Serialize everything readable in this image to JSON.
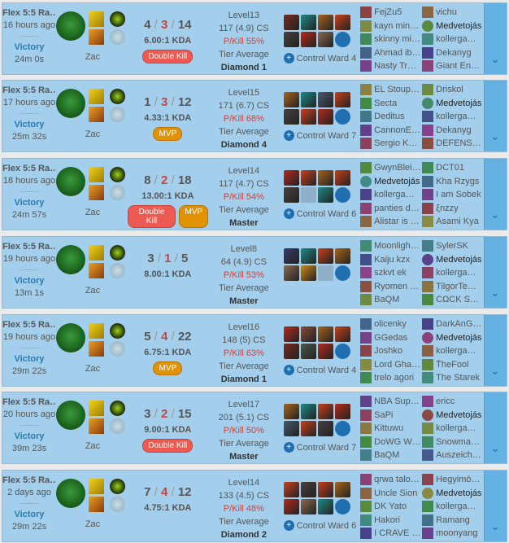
{
  "colors": {
    "row_bg": "#a3cfec",
    "victory": "#2a7ab0",
    "deaths": "#c6443e",
    "double_kill": "#ee5a52",
    "mvp": "#e19205",
    "expand": "#64b1e4"
  },
  "games": [
    {
      "type": "Flex 5:5 Ra…",
      "ago": "16 hours ago",
      "result": "Victory",
      "length": "24m 0s",
      "champion": "Zac",
      "k": "4",
      "d": "3",
      "a": "14",
      "kda": "6.00:1 KDA",
      "badges": [
        "Double Kill"
      ],
      "level": "Level13",
      "cs": "117 (4.9) CS",
      "pkill": "P/Kill 55%",
      "tier_label": "Tier Average",
      "tier": "Diamond 1",
      "ward": "Control Ward 4",
      "items": [
        "#7a2a20",
        "#1e8a86",
        "#a8641a",
        "#c8401a",
        "#4a4040",
        "#b52a1a",
        "#8a6a50",
        "ward"
      ],
      "team1": [
        "FejZu5",
        "kayn min…",
        "skinny mi…",
        "Ahmad ib…",
        "Nasty Tra…"
      ],
      "team2": [
        "vichu",
        "Medvetojás",
        "kollergam…",
        "Dekanyg",
        "Giant Ene…"
      ]
    },
    {
      "type": "Flex 5:5 Ra…",
      "ago": "17 hours ago",
      "result": "Victory",
      "length": "25m 32s",
      "champion": "Zac",
      "k": "1",
      "d": "3",
      "a": "12",
      "kda": "4.33:1 KDA",
      "badges": [
        "MVP"
      ],
      "level": "Level15",
      "cs": "171 (6.7) CS",
      "pkill": "P/Kill 68%",
      "tier_label": "Tier Average",
      "tier": "Diamond 4",
      "ward": "Control Ward 7",
      "items": [
        "#a8641a",
        "#1e8a86",
        "#4a5a6a",
        "#c8401a",
        "#4a4040",
        "#c84020",
        "#b52a1a",
        "ward"
      ],
      "team1": [
        "EL Stoupi…",
        "Secta",
        "Deditus",
        "CannonE…",
        "Sergio Ko…"
      ],
      "team2": [
        "Driskol",
        "Medvetojás",
        "kollergam…",
        "Dekanyg",
        "DEFENSI…"
      ]
    },
    {
      "type": "Flex 5:5 Ra…",
      "ago": "18 hours ago",
      "result": "Victory",
      "length": "24m 57s",
      "champion": "Zac",
      "k": "8",
      "d": "2",
      "a": "18",
      "kda": "13.00:1 KDA",
      "badges": [
        "Double Kill",
        "MVP"
      ],
      "level": "Level14",
      "cs": "117 (4.7) CS",
      "pkill": "P/Kill 54%",
      "tier_label": "Tier Average",
      "tier": "Master",
      "ward": "Control Ward 6",
      "items": [
        "#b52a1a",
        "#c84020",
        "#a8641a",
        "#c8401a",
        "#4a4040",
        "empty",
        "#1e8a86",
        "ward"
      ],
      "team1": [
        "GwynBleii…",
        "Medvetojás",
        "kollergam…",
        "panties dr…",
        "Alistar is …"
      ],
      "team2": [
        "DCT01",
        "Kha Rzygs",
        "I am Sobek",
        "ξnzzy",
        "Asami Kya"
      ]
    },
    {
      "type": "Flex 5:5 Ra…",
      "ago": "19 hours ago",
      "result": "Victory",
      "length": "13m 1s",
      "champion": "Zac",
      "k": "3",
      "d": "1",
      "a": "5",
      "kda": "8.00:1 KDA",
      "badges": [],
      "level": "Level8",
      "cs": "64 (4.9) CS",
      "pkill": "P/Kill 53%",
      "tier_label": "Tier Average",
      "tier": "Master",
      "ward": "",
      "items": [
        "#3a3a6a",
        "#1e8a86",
        "#c8401a",
        "#a8641a",
        "#8a6a50",
        "#c88a1a",
        "empty",
        "ward"
      ],
      "team1": [
        "Moonlight…",
        "Kaiju kzx",
        "szkvt ek",
        "Ryomen …",
        "BaQM"
      ],
      "team2": [
        "SylerSK",
        "Medvetojás",
        "kollergam…",
        "TilgorTem…",
        "CΩCK S8…"
      ]
    },
    {
      "type": "Flex 5:5 Ra…",
      "ago": "19 hours ago",
      "result": "Victory",
      "length": "29m 22s",
      "champion": "Zac",
      "k": "5",
      "d": "4",
      "a": "22",
      "kda": "6.75:1 KDA",
      "badges": [
        "MVP"
      ],
      "level": "Level16",
      "cs": "148 (5) CS",
      "pkill": "P/Kill 63%",
      "tier_label": "Tier Average",
      "tier": "Diamond 1",
      "ward": "Control Ward 4",
      "items": [
        "#b52a1a",
        "#8a4a3a",
        "#a8641a",
        "#c8401a",
        "#7a2a20",
        "#4a5a4a",
        "#b52a1a",
        "ward"
      ],
      "team1": [
        "olicenky",
        "GGedas",
        "Joshko",
        "Lord Gha…",
        "trelo agori"
      ],
      "team2": [
        "DarkAnG…",
        "Medvetojás",
        "kollergam…",
        "ŤheFool",
        "The Starek"
      ]
    },
    {
      "type": "Flex 5:5 Ra…",
      "ago": "20 hours ago",
      "result": "Victory",
      "length": "39m 23s",
      "champion": "Zac",
      "k": "3",
      "d": "2",
      "a": "15",
      "kda": "9.00:1 KDA",
      "badges": [
        "Double Kill"
      ],
      "level": "Level17",
      "cs": "201 (5.1) CS",
      "pkill": "P/Kill 50%",
      "tier_label": "Tier Average",
      "tier": "Master",
      "ward": "Control Ward 7",
      "items": [
        "#a8641a",
        "#1e8a86",
        "#c8401a",
        "#b52a1a",
        "#4a5a6a",
        "#c84020",
        "#4a4040",
        "ward"
      ],
      "team1": [
        "NBA Sup…",
        "SaPi",
        "Kittuwu",
        "DoWG W…",
        "BaQM"
      ],
      "team2": [
        "ericc",
        "Medvetojás",
        "kollergam…",
        "Snowman…",
        "Auszeich…"
      ]
    },
    {
      "type": "Flex 5:5 Ra…",
      "ago": "2 days ago",
      "result": "Victory",
      "length": "29m 22s",
      "champion": "Zac",
      "k": "7",
      "d": "4",
      "a": "12",
      "kda": "4.75:1 KDA",
      "badges": [],
      "level": "Level14",
      "cs": "133 (4.5) CS",
      "pkill": "P/Kill 48%",
      "tier_label": "Tier Average",
      "tier": "Diamond 2",
      "ward": "Control Ward 6",
      "items": [
        "#c84020",
        "#4a4040",
        "#c8401a",
        "#a8641a",
        "#b52a1a",
        "#8a6a50",
        "#1e8a86",
        "ward"
      ],
      "team1": [
        "qrwa talo…",
        "Uncle Sion",
        "DK Yato",
        "Hakori",
        "I CRAVE …"
      ],
      "team2": [
        "Hegyimók…",
        "Medvetojás",
        "kollergam…",
        "Ramang",
        "moonyang"
      ]
    }
  ]
}
